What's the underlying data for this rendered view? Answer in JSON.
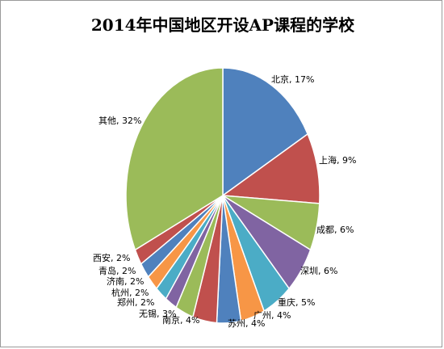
{
  "chart_data": {
    "type": "pie",
    "title": "2014年中国地区开设AP课程的学校",
    "slices": [
      {
        "name": "北京",
        "value": 17,
        "label": "北京, 17%",
        "color": "#4F81BD"
      },
      {
        "name": "上海",
        "value": 9,
        "label": "上海, 9%",
        "color": "#C0504D"
      },
      {
        "name": "成都",
        "value": 6,
        "label": "成都, 6%",
        "color": "#9BBB59"
      },
      {
        "name": "深圳",
        "value": 6,
        "label": "深圳, 6%",
        "color": "#8064A2"
      },
      {
        "name": "重庆",
        "value": 5,
        "label": "重庆, 5%",
        "color": "#4BACC6"
      },
      {
        "name": "广州",
        "value": 4,
        "label": "广州, 4%",
        "color": "#F79646"
      },
      {
        "name": "苏州",
        "value": 4,
        "label": "苏州, 4%",
        "color": "#4F81BD"
      },
      {
        "name": "南京",
        "value": 4,
        "label": "南京, 4%",
        "color": "#C0504D"
      },
      {
        "name": "无锡",
        "value": 3,
        "label": "无锡, 3%",
        "color": "#9BBB59"
      },
      {
        "name": "郑州",
        "value": 2,
        "label": "郑州, 2%",
        "color": "#8064A2"
      },
      {
        "name": "杭州",
        "value": 2,
        "label": "杭州, 2%",
        "color": "#4BACC6"
      },
      {
        "name": "济南",
        "value": 2,
        "label": "济南, 2%",
        "color": "#F79646"
      },
      {
        "name": "青岛",
        "value": 2,
        "label": "青岛, 2%",
        "color": "#4F81BD"
      },
      {
        "name": "西安",
        "value": 2,
        "label": "西安, 2%",
        "color": "#C0504D"
      },
      {
        "name": "其他",
        "value": 32,
        "label": "其他, 32%",
        "color": "#9BBB59"
      }
    ]
  }
}
